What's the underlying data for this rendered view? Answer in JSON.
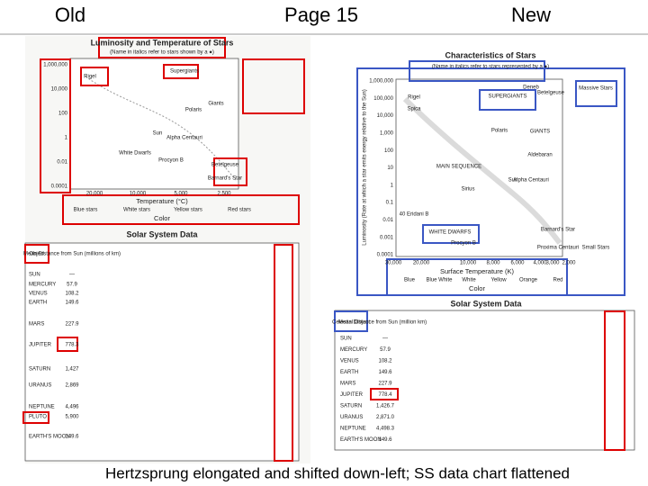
{
  "header": {
    "left": "Old",
    "center": "Page 15",
    "right": "New"
  },
  "old": {
    "chart_title": "Luminosity and Temperature of Stars",
    "chart_note": "(Name in italics refer to stars shown by a ●)",
    "yticks": [
      "1,000,000",
      "10,000",
      "100",
      "1",
      "0.01",
      "0.0001"
    ],
    "xticks": [
      "20,000",
      "10,000",
      "5,000",
      "2,500"
    ],
    "x_label": "Temperature (°C)",
    "colors": [
      "Blue stars",
      "White stars",
      "Yellow stars",
      "Red stars"
    ],
    "color_label": "Color",
    "stars": [
      "Supergiants",
      "Giants",
      "White Dwarfs",
      "Sun",
      "Polaris",
      "Betelgeuse",
      "Rigel",
      "Alpha Centauri",
      "Procyon B",
      "Barnard's Star"
    ],
    "table_title": "Solar System Data",
    "table_header": [
      "Object",
      "Mean Distance from Sun (millions of km)"
    ],
    "rows": [
      [
        "SUN",
        "—"
      ],
      [
        "MERCURY",
        "57.9"
      ],
      [
        "VENUS",
        "108.2"
      ],
      [
        "EARTH",
        "149.6"
      ],
      [
        "MARS",
        "227.9"
      ],
      [
        "JUPITER",
        "778.3"
      ],
      [
        "SATURN",
        "1,427"
      ],
      [
        "URANUS",
        "2,869"
      ],
      [
        "NEPTUNE",
        "4,496"
      ],
      [
        "PLUTO",
        "5,900"
      ],
      [
        "EARTH'S MOON",
        "149.6"
      ]
    ]
  },
  "new": {
    "chart_title": "Characteristics of Stars",
    "chart_note": "(Name in italics refer to stars represented by a ●)",
    "y_label": "Luminosity (Rate at which a star emits energy relative to the Sun)",
    "yticks": [
      "1,000,000",
      "100,000",
      "10,000",
      "1,000",
      "100",
      "10",
      "1",
      "0.1",
      "0.01",
      "0.001",
      "0.0001"
    ],
    "xticks": [
      "30,000",
      "20,000",
      "10,000",
      "8,000",
      "6,000",
      "4,000",
      "3,000",
      "2,000"
    ],
    "x_label": "Surface Temperature (K)",
    "colors": [
      "Blue",
      "Blue White",
      "White",
      "Yellow",
      "Orange",
      "Red"
    ],
    "color_label": "Color",
    "stars": [
      "SUPERGIANTS",
      "GIANTS",
      "MAIN SEQUENCE",
      "WHITE DWARFS",
      "Massive Stars",
      "Small Stars",
      "Rigel",
      "Deneb",
      "Betelgeuse",
      "Spica",
      "Polaris",
      "Aldebaran",
      "Sun",
      "Alpha Centauri",
      "Sirius",
      "40 Eridani B",
      "Procyon B",
      "Barnard's Star",
      "Proxima Centauri"
    ],
    "table_title": "Solar System Data",
    "table_header": [
      "Celestial Object",
      "Mean Distance from Sun (million km)"
    ],
    "rows": [
      [
        "SUN",
        "—"
      ],
      [
        "MERCURY",
        "57.9"
      ],
      [
        "VENUS",
        "108.2"
      ],
      [
        "EARTH",
        "149.6"
      ],
      [
        "MARS",
        "227.9"
      ],
      [
        "JUPITER",
        "778.4"
      ],
      [
        "SATURN",
        "1,426.7"
      ],
      [
        "URANUS",
        "2,871.0"
      ],
      [
        "NEPTUNE",
        "4,498.3"
      ],
      [
        "EARTH'S MOON",
        "149.6"
      ]
    ]
  },
  "caption": "Hertzsprung elongated and shifted down-left; SS data chart flattened"
}
